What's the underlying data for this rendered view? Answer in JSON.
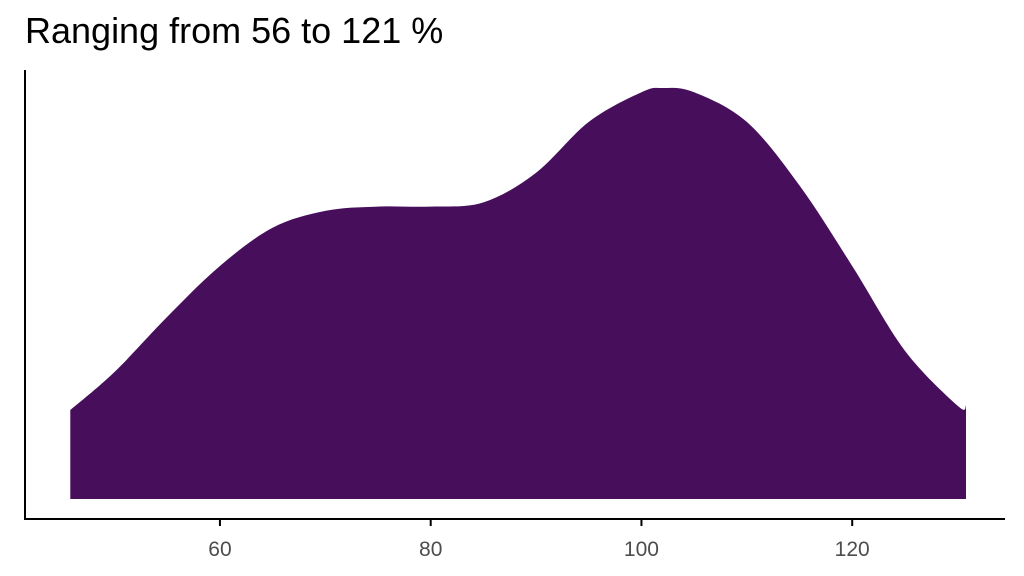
{
  "chart_data": {
    "type": "area",
    "title": "Ranging from 56 to 121 %",
    "xlabel": "",
    "ylabel": "",
    "xlim": [
      41.5,
      134.5
    ],
    "ylim": [
      0,
      1
    ],
    "grid": false,
    "legend": "none",
    "fill_color": "#470E5C",
    "axis_color": "#000000",
    "x_ticks": [
      60,
      80,
      100,
      120
    ],
    "x_tick_labels": [
      "60",
      "80",
      "100",
      "120"
    ],
    "series": [
      {
        "x": [
          45.8,
          50,
          55,
          60,
          65,
          70,
          75,
          80,
          85,
          90,
          95,
          100,
          102,
          105,
          110,
          115,
          120,
          125,
          130,
          130.8
        ],
        "y": [
          0.21,
          0.3,
          0.43,
          0.55,
          0.64,
          0.68,
          0.69,
          0.69,
          0.7,
          0.77,
          0.89,
          0.96,
          0.97,
          0.96,
          0.89,
          0.74,
          0.55,
          0.35,
          0.22,
          0.22
        ]
      }
    ]
  }
}
